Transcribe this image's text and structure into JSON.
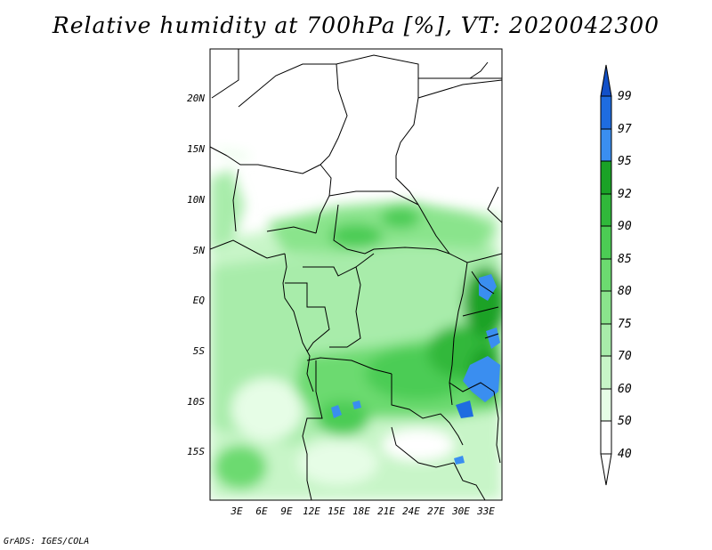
{
  "title": "Relative humidity at 700hPa [%], VT: 2020042300",
  "credit": "GrADS: IGES/COLA",
  "map": {
    "lat_labels": [
      "20N",
      "15N",
      "10N",
      "5N",
      "EQ",
      "5S",
      "10S",
      "15S"
    ],
    "lon_labels": [
      "3E",
      "6E",
      "9E",
      "12E",
      "15E",
      "18E",
      "21E",
      "24E",
      "27E",
      "30E",
      "33E"
    ]
  },
  "colorbar": {
    "levels": [
      "40",
      "50",
      "60",
      "70",
      "75",
      "80",
      "85",
      "90",
      "92",
      "95",
      "97",
      "99"
    ],
    "colors": [
      "#ffffff",
      "#e6fde6",
      "#c8f5c8",
      "#a8ecaa",
      "#8ae48c",
      "#6cda70",
      "#4ccc54",
      "#30b83a",
      "#1aa226",
      "#0c8c16",
      "#3a8ef0",
      "#1e6ce0",
      "#1250c8"
    ]
  }
}
